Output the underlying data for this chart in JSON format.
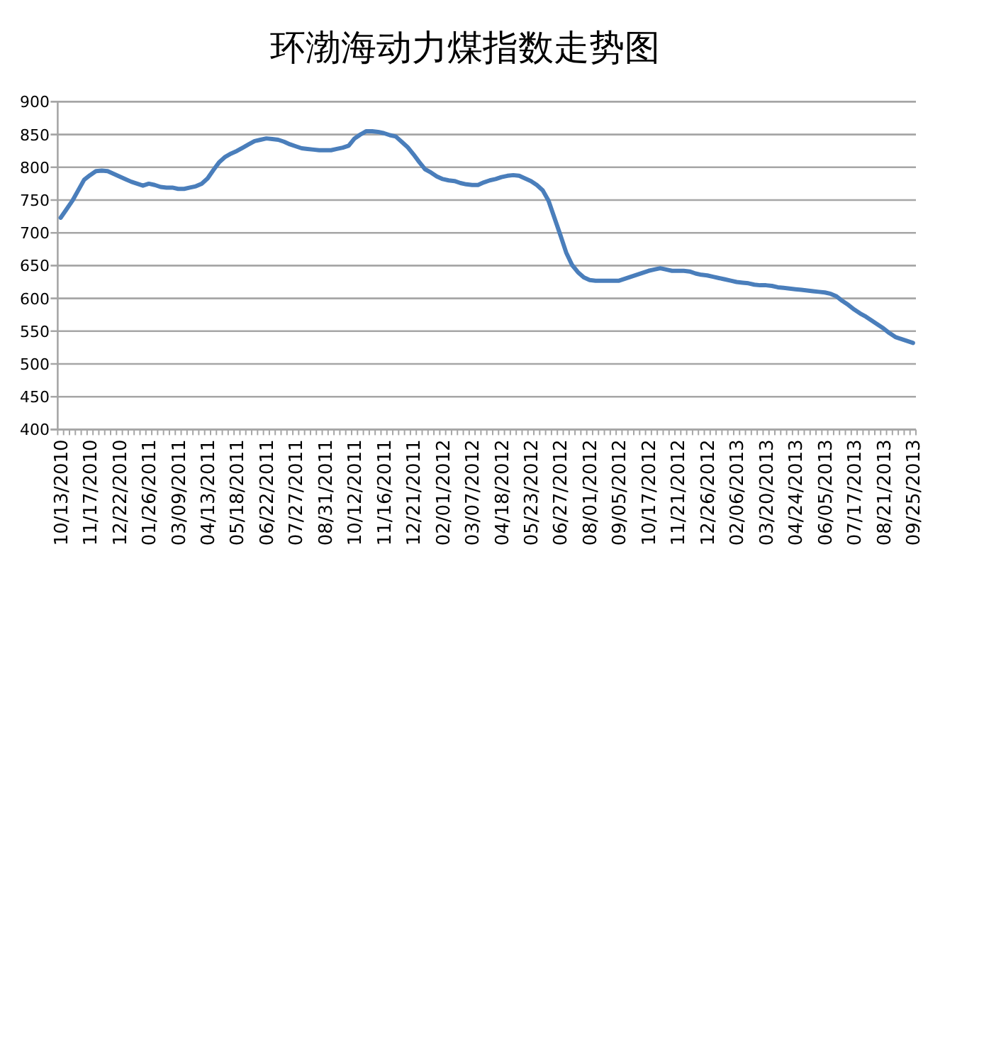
{
  "chart_data": {
    "type": "line",
    "title": "环渤海动力煤指数走势图",
    "categories": [
      "10/13/2010",
      null,
      null,
      null,
      null,
      "11/17/2010",
      null,
      null,
      null,
      null,
      "12/22/2010",
      null,
      null,
      null,
      null,
      "01/26/2011",
      null,
      null,
      null,
      null,
      "03/09/2011",
      null,
      null,
      null,
      null,
      "04/13/2011",
      null,
      null,
      null,
      null,
      "05/18/2011",
      null,
      null,
      null,
      null,
      "06/22/2011",
      null,
      null,
      null,
      null,
      "07/27/2011",
      null,
      null,
      null,
      null,
      "08/31/2011",
      null,
      null,
      null,
      null,
      "10/12/2011",
      null,
      null,
      null,
      null,
      "11/16/2011",
      null,
      null,
      null,
      null,
      "12/21/2011",
      null,
      null,
      null,
      null,
      "02/01/2012",
      null,
      null,
      null,
      null,
      "03/07/2012",
      null,
      null,
      null,
      null,
      "04/18/2012",
      null,
      null,
      null,
      null,
      "05/23/2012",
      null,
      null,
      null,
      null,
      "06/27/2012",
      null,
      null,
      null,
      null,
      "08/01/2012",
      null,
      null,
      null,
      null,
      "09/05/2012",
      null,
      null,
      null,
      null,
      "10/17/2012",
      null,
      null,
      null,
      null,
      "11/21/2012",
      null,
      null,
      null,
      null,
      "12/26/2012",
      null,
      null,
      null,
      null,
      "02/06/2013",
      null,
      null,
      null,
      null,
      "03/20/2013",
      null,
      null,
      null,
      null,
      "04/24/2013",
      null,
      null,
      null,
      null,
      "06/05/2013",
      null,
      null,
      null,
      null,
      "07/17/2013",
      null,
      null,
      null,
      null,
      "08/21/2013",
      null,
      null,
      null,
      null,
      "09/25/2013"
    ],
    "values": [
      723,
      736,
      749,
      765,
      781,
      788,
      794,
      795,
      794,
      790,
      786,
      782,
      778,
      775,
      772,
      775,
      773,
      770,
      769,
      769,
      767,
      767,
      769,
      771,
      775,
      783,
      796,
      808,
      816,
      821,
      825,
      830,
      835,
      840,
      842,
      844,
      843,
      842,
      839,
      835,
      832,
      829,
      828,
      827,
      826,
      826,
      826,
      828,
      830,
      833,
      844,
      850,
      855,
      855,
      854,
      852,
      849,
      847,
      839,
      831,
      820,
      808,
      797,
      792,
      786,
      782,
      780,
      779,
      776,
      774,
      773,
      773,
      777,
      780,
      782,
      785,
      787,
      788,
      787,
      783,
      779,
      773,
      765,
      749,
      723,
      697,
      670,
      651,
      640,
      632,
      628,
      627,
      627,
      627,
      627,
      627,
      630,
      633,
      636,
      639,
      642,
      644,
      646,
      644,
      642,
      642,
      642,
      641,
      638,
      636,
      635,
      633,
      631,
      629,
      627,
      625,
      624,
      623,
      621,
      620,
      620,
      619,
      617,
      616,
      615,
      614,
      613,
      612,
      611,
      610,
      609,
      607,
      603,
      596,
      590,
      583,
      577,
      572,
      566,
      560,
      554,
      547,
      541,
      538,
      535,
      532
    ],
    "color": "#4a7ebb",
    "ylim": [
      400,
      900
    ],
    "yticks": [
      400,
      450,
      500,
      550,
      600,
      650,
      700,
      750,
      800,
      850,
      900
    ],
    "grid": "y"
  }
}
